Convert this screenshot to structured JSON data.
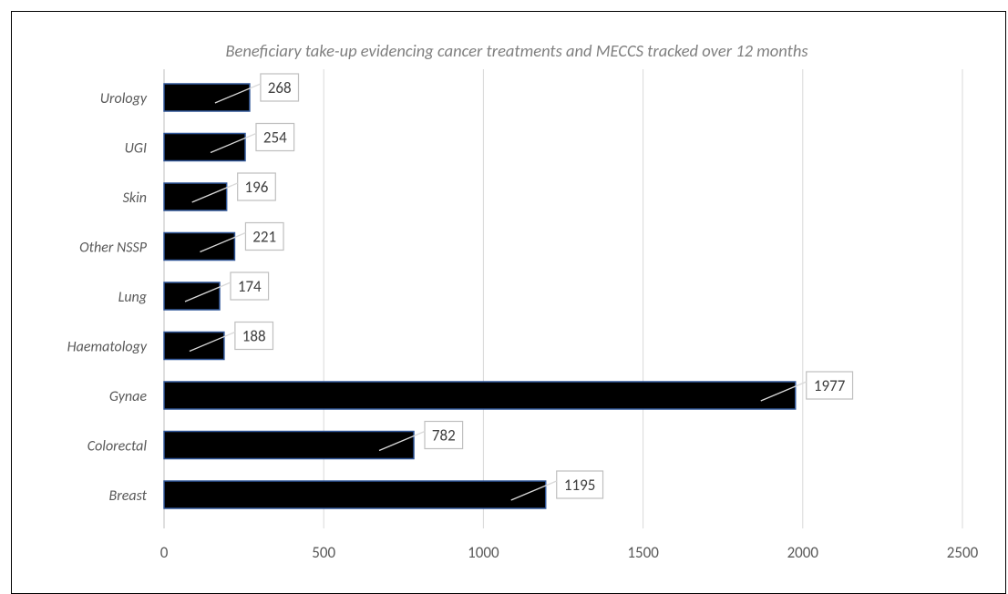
{
  "chart_data": {
    "type": "bar",
    "orientation": "horizontal",
    "title": "Beneficiary take-up evidencing cancer treatments and MECCS tracked over 12 months",
    "categories": [
      "Urology",
      "UGI",
      "Skin",
      "Other NSSP",
      "Lung",
      "Haematology",
      "Gynae",
      "Colorectal",
      "Breast"
    ],
    "values": [
      268,
      254,
      196,
      221,
      174,
      188,
      1977,
      782,
      1195
    ],
    "xlim": [
      0,
      2500
    ],
    "xticks": [
      0,
      500,
      1000,
      1500,
      2000,
      2500
    ],
    "grid": true,
    "bar_color": "#000000",
    "bar_edge_color": "#2f5597"
  }
}
